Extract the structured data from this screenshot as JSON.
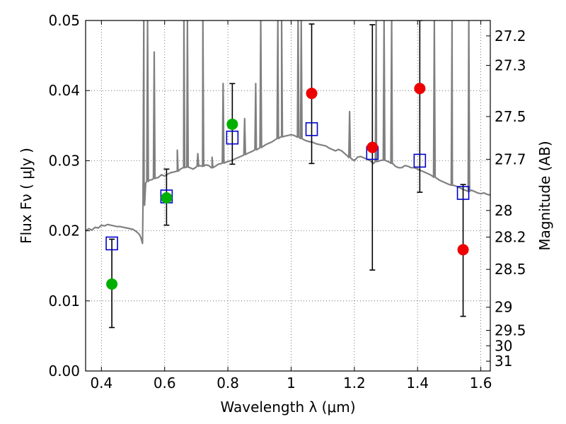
{
  "chart_data": {
    "type": "scatter",
    "title": "",
    "xlabel": "Wavelength  λ (μm)",
    "ylabel_left": "Flux  Fν  ( μJy )",
    "ylabel_right": "Magnitude (AB)",
    "xlim": [
      0.35,
      1.63
    ],
    "ylim": [
      0.0,
      0.05
    ],
    "grid": true,
    "grid_style": "dotted",
    "x_ticks": [
      0.4,
      0.6,
      0.8,
      1.0,
      1.2,
      1.4,
      1.6
    ],
    "x_tick_labels": [
      "0.4",
      "0.6",
      "0.8",
      "1",
      "1.2",
      "1.4",
      "1.6"
    ],
    "y_ticks": [
      0.0,
      0.01,
      0.02,
      0.03,
      0.04,
      0.05
    ],
    "y_tick_labels": [
      "0.00",
      "0.01",
      "0.02",
      "0.03",
      "0.04",
      "0.05"
    ],
    "right_ticks": [
      {
        "label": "27.2",
        "flux": 0.0478
      },
      {
        "label": "27.3",
        "flux": 0.0436
      },
      {
        "label": "27.5",
        "flux": 0.0363
      },
      {
        "label": "27.7",
        "flux": 0.0302
      },
      {
        "label": "28",
        "flux": 0.0229
      },
      {
        "label": "28.2",
        "flux": 0.0191
      },
      {
        "label": "28.5",
        "flux": 0.0145
      },
      {
        "label": "29",
        "flux": 0.0091
      },
      {
        "label": "29.5",
        "flux": 0.0058
      },
      {
        "label": "30",
        "flux": 0.0036
      },
      {
        "label": "31",
        "flux": 0.0014
      }
    ],
    "colors": {
      "spectrum": "#808080",
      "observed_green": "#00b000",
      "observed_red": "#ee0000",
      "model_box": "#0000cc",
      "errorbar": "#000000",
      "grid": "#555555"
    },
    "series": [
      {
        "kind": "spectrum",
        "points": [
          [
            0.35,
            0.02
          ],
          [
            0.36,
            0.0203
          ],
          [
            0.37,
            0.0201
          ],
          [
            0.38,
            0.0205
          ],
          [
            0.39,
            0.0204
          ],
          [
            0.4,
            0.0208
          ],
          [
            0.41,
            0.0207
          ],
          [
            0.42,
            0.0209
          ],
          [
            0.43,
            0.0208
          ],
          [
            0.44,
            0.0207
          ],
          [
            0.45,
            0.0206
          ],
          [
            0.46,
            0.0206
          ],
          [
            0.47,
            0.0205
          ],
          [
            0.48,
            0.0204
          ],
          [
            0.49,
            0.0203
          ],
          [
            0.5,
            0.0202
          ],
          [
            0.51,
            0.0199
          ],
          [
            0.52,
            0.0195
          ],
          [
            0.525,
            0.019
          ],
          [
            0.53,
            0.0182
          ],
          [
            0.535,
            0.025
          ],
          [
            0.54,
            0.0268
          ],
          [
            0.55,
            0.0272
          ],
          [
            0.56,
            0.0273
          ],
          [
            0.57,
            0.0275
          ],
          [
            0.58,
            0.0276
          ],
          [
            0.59,
            0.028
          ],
          [
            0.6,
            0.0278
          ],
          [
            0.61,
            0.0281
          ],
          [
            0.62,
            0.0283
          ],
          [
            0.63,
            0.0284
          ],
          [
            0.64,
            0.0285
          ],
          [
            0.65,
            0.0288
          ],
          [
            0.66,
            0.029
          ],
          [
            0.67,
            0.0291
          ],
          [
            0.68,
            0.029
          ],
          [
            0.69,
            0.0288
          ],
          [
            0.7,
            0.0291
          ],
          [
            0.71,
            0.0293
          ],
          [
            0.72,
            0.0292
          ],
          [
            0.73,
            0.0294
          ],
          [
            0.74,
            0.0293
          ],
          [
            0.75,
            0.029
          ],
          [
            0.76,
            0.0292
          ],
          [
            0.77,
            0.0295
          ],
          [
            0.78,
            0.0296
          ],
          [
            0.79,
            0.0297
          ],
          [
            0.8,
            0.0299
          ],
          [
            0.81,
            0.03
          ],
          [
            0.82,
            0.0302
          ],
          [
            0.83,
            0.0304
          ],
          [
            0.84,
            0.0306
          ],
          [
            0.85,
            0.0308
          ],
          [
            0.86,
            0.031
          ],
          [
            0.87,
            0.0312
          ],
          [
            0.88,
            0.0314
          ],
          [
            0.89,
            0.0316
          ],
          [
            0.9,
            0.0318
          ],
          [
            0.91,
            0.032
          ],
          [
            0.92,
            0.0323
          ],
          [
            0.93,
            0.0325
          ],
          [
            0.94,
            0.0327
          ],
          [
            0.95,
            0.033
          ],
          [
            0.96,
            0.0332
          ],
          [
            0.97,
            0.0334
          ],
          [
            0.98,
            0.0335
          ],
          [
            0.99,
            0.0336
          ],
          [
            1.0,
            0.0337
          ],
          [
            1.01,
            0.0336
          ],
          [
            1.02,
            0.0334
          ],
          [
            1.03,
            0.0332
          ],
          [
            1.04,
            0.033
          ],
          [
            1.05,
            0.0328
          ],
          [
            1.06,
            0.0327
          ],
          [
            1.07,
            0.0326
          ],
          [
            1.08,
            0.0324
          ],
          [
            1.09,
            0.0323
          ],
          [
            1.1,
            0.0322
          ],
          [
            1.11,
            0.0321
          ],
          [
            1.12,
            0.0318
          ],
          [
            1.13,
            0.0316
          ],
          [
            1.14,
            0.0314
          ],
          [
            1.15,
            0.0316
          ],
          [
            1.16,
            0.0314
          ],
          [
            1.17,
            0.031
          ],
          [
            1.18,
            0.0306
          ],
          [
            1.19,
            0.0303
          ],
          [
            1.2,
            0.03
          ],
          [
            1.21,
            0.0305
          ],
          [
            1.22,
            0.0306
          ],
          [
            1.23,
            0.0304
          ],
          [
            1.24,
            0.0302
          ],
          [
            1.25,
            0.03
          ],
          [
            1.26,
            0.0296
          ],
          [
            1.27,
            0.0299
          ],
          [
            1.28,
            0.03
          ],
          [
            1.29,
            0.0301
          ],
          [
            1.3,
            0.03
          ],
          [
            1.31,
            0.0298
          ],
          [
            1.32,
            0.0296
          ],
          [
            1.33,
            0.0292
          ],
          [
            1.34,
            0.029
          ],
          [
            1.35,
            0.029
          ],
          [
            1.36,
            0.0293
          ],
          [
            1.37,
            0.0292
          ],
          [
            1.38,
            0.029
          ],
          [
            1.39,
            0.029
          ],
          [
            1.4,
            0.0288
          ],
          [
            1.41,
            0.0286
          ],
          [
            1.42,
            0.0284
          ],
          [
            1.43,
            0.0282
          ],
          [
            1.44,
            0.028
          ],
          [
            1.45,
            0.0277
          ],
          [
            1.46,
            0.0275
          ],
          [
            1.47,
            0.0272
          ],
          [
            1.48,
            0.027
          ],
          [
            1.49,
            0.0268
          ],
          [
            1.5,
            0.0266
          ],
          [
            1.51,
            0.0265
          ],
          [
            1.52,
            0.0264
          ],
          [
            1.53,
            0.0262
          ],
          [
            1.54,
            0.026
          ],
          [
            1.55,
            0.0258
          ],
          [
            1.56,
            0.0256
          ],
          [
            1.57,
            0.0258
          ],
          [
            1.58,
            0.0256
          ],
          [
            1.59,
            0.0254
          ],
          [
            1.6,
            0.0253
          ],
          [
            1.61,
            0.0254
          ],
          [
            1.62,
            0.0252
          ],
          [
            1.63,
            0.0251
          ]
        ],
        "emission_lines": [
          {
            "x": 0.534,
            "peak": 0.05
          },
          {
            "x": 0.546,
            "peak": 0.05
          },
          {
            "x": 0.567,
            "peak": 0.0455
          },
          {
            "x": 0.64,
            "peak": 0.0315
          },
          {
            "x": 0.661,
            "peak": 0.05
          },
          {
            "x": 0.672,
            "peak": 0.05
          },
          {
            "x": 0.705,
            "peak": 0.031
          },
          {
            "x": 0.721,
            "peak": 0.05
          },
          {
            "x": 0.75,
            "peak": 0.0305
          },
          {
            "x": 0.785,
            "peak": 0.041
          },
          {
            "x": 0.853,
            "peak": 0.036
          },
          {
            "x": 0.888,
            "peak": 0.041
          },
          {
            "x": 0.904,
            "peak": 0.05
          },
          {
            "x": 0.958,
            "peak": 0.05
          },
          {
            "x": 0.97,
            "peak": 0.05
          },
          {
            "x": 1.022,
            "peak": 0.05
          },
          {
            "x": 1.032,
            "peak": 0.05
          },
          {
            "x": 1.185,
            "peak": 0.037
          },
          {
            "x": 1.269,
            "peak": 0.05
          },
          {
            "x": 1.294,
            "peak": 0.05
          },
          {
            "x": 1.318,
            "peak": 0.05
          },
          {
            "x": 1.453,
            "peak": 0.05
          },
          {
            "x": 1.509,
            "peak": 0.05
          },
          {
            "x": 1.562,
            "peak": 0.05
          }
        ]
      },
      {
        "kind": "observed",
        "points": [
          {
            "x": 0.433,
            "y": 0.0124,
            "err_low": 0.0062,
            "err_high": 0.0188,
            "color": "green"
          },
          {
            "x": 0.606,
            "y": 0.0247,
            "err_low": 0.0208,
            "err_high": 0.0288,
            "color": "green"
          },
          {
            "x": 0.814,
            "y": 0.0352,
            "err_low": 0.0295,
            "err_high": 0.041,
            "color": "green"
          },
          {
            "x": 1.065,
            "y": 0.0396,
            "err_low": 0.0296,
            "err_high": 0.0495,
            "color": "red"
          },
          {
            "x": 1.257,
            "y": 0.0319,
            "err_low": 0.0144,
            "err_high": 0.0494,
            "color": "red"
          },
          {
            "x": 1.407,
            "y": 0.0403,
            "err_low": 0.0255,
            "err_high": 0.05,
            "color": "red"
          },
          {
            "x": 1.544,
            "y": 0.0173,
            "err_low": 0.0078,
            "err_high": 0.0266,
            "color": "red"
          }
        ]
      },
      {
        "kind": "model",
        "points": [
          {
            "x": 0.433,
            "y": 0.0182
          },
          {
            "x": 0.606,
            "y": 0.0249
          },
          {
            "x": 0.814,
            "y": 0.0333
          },
          {
            "x": 1.065,
            "y": 0.0345
          },
          {
            "x": 1.257,
            "y": 0.0311
          },
          {
            "x": 1.407,
            "y": 0.03
          },
          {
            "x": 1.544,
            "y": 0.0254
          }
        ]
      }
    ]
  }
}
